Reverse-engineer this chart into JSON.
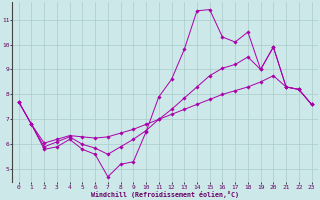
{
  "xlabel": "Windchill (Refroidissement éolien,°C)",
  "bg_color": "#cce8e8",
  "grid_color": "#aacccc",
  "line_color": "#aa00aa",
  "xlim": [
    -0.5,
    23.5
  ],
  "ylim": [
    4.5,
    11.7
  ],
  "xticks": [
    0,
    1,
    2,
    3,
    4,
    5,
    6,
    7,
    8,
    9,
    10,
    11,
    12,
    13,
    14,
    15,
    16,
    17,
    18,
    19,
    20,
    21,
    22,
    23
  ],
  "yticks": [
    5,
    6,
    7,
    8,
    9,
    10,
    11
  ],
  "line1_x": [
    0,
    1,
    2,
    3,
    4,
    5,
    6,
    7,
    8,
    9,
    10,
    11,
    12,
    13,
    14,
    15,
    16,
    17,
    18,
    19,
    20,
    21,
    22,
    23
  ],
  "line1_y": [
    7.7,
    6.8,
    5.8,
    5.9,
    6.2,
    5.8,
    5.6,
    4.7,
    5.2,
    5.3,
    6.5,
    7.9,
    8.6,
    9.8,
    11.35,
    11.4,
    10.3,
    10.1,
    10.5,
    9.0,
    9.9,
    8.3,
    8.2,
    7.6
  ],
  "line2_x": [
    0,
    1,
    2,
    3,
    4,
    5,
    6,
    7,
    8,
    9,
    10,
    11,
    12,
    13,
    14,
    15,
    16,
    17,
    18,
    19,
    20,
    21,
    22,
    23
  ],
  "line2_y": [
    7.7,
    6.8,
    6.05,
    6.2,
    6.35,
    6.3,
    6.25,
    6.3,
    6.45,
    6.6,
    6.8,
    7.0,
    7.2,
    7.4,
    7.6,
    7.8,
    8.0,
    8.15,
    8.3,
    8.5,
    8.75,
    8.3,
    8.2,
    7.6
  ],
  "line3_x": [
    0,
    1,
    2,
    3,
    4,
    5,
    6,
    7,
    8,
    9,
    10,
    11,
    12,
    13,
    14,
    15,
    16,
    17,
    18,
    19,
    20,
    21,
    22,
    23
  ],
  "line3_y": [
    7.7,
    6.8,
    5.9,
    6.1,
    6.3,
    6.0,
    5.85,
    5.6,
    5.9,
    6.2,
    6.55,
    7.0,
    7.4,
    7.85,
    8.3,
    8.75,
    9.05,
    9.2,
    9.5,
    9.0,
    9.9,
    8.3,
    8.2,
    7.6
  ]
}
